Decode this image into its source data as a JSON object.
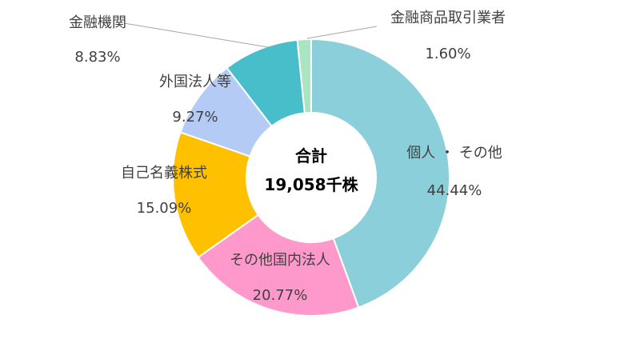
{
  "chart_data": {
    "type": "pie",
    "variant": "donut",
    "center_label": {
      "line1": "合計",
      "line2": "19,058千株"
    },
    "slices": [
      {
        "label": "個人 ・ その他",
        "value": 44.44,
        "value_text": "44.44%",
        "color": "#8ACFD9"
      },
      {
        "label": "その他国内法人",
        "value": 20.77,
        "value_text": "20.77%",
        "color": "#FF99CC"
      },
      {
        "label": "自己名義株式",
        "value": 15.09,
        "value_text": "15.09%",
        "color": "#FFC000"
      },
      {
        "label": "外国法人等",
        "value": 9.27,
        "value_text": "9.27%",
        "color": "#B4CBF5"
      },
      {
        "label": "金融機関",
        "value": 8.83,
        "value_text": "8.83%",
        "color": "#48BECB"
      },
      {
        "label": "金融商品取引業者",
        "value": 1.6,
        "value_text": "1.60%",
        "color": "#A9E5C0"
      }
    ]
  }
}
